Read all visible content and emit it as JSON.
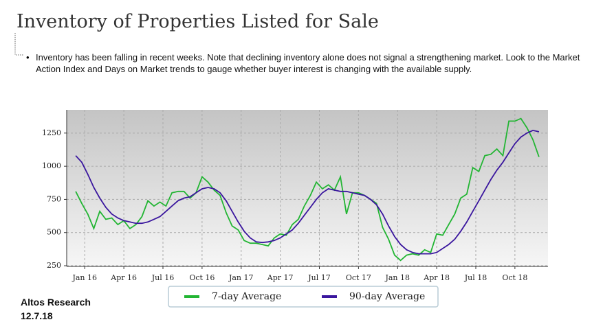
{
  "header": {
    "title": "Inventory of Properties Listed for Sale",
    "bullet": "Inventory has been falling in recent weeks. Note that declining inventory alone does not signal a strengthening market. Look to the Market Action Index and Days on Market trends to gauge whether buyer interest is changing with the available supply."
  },
  "footer": [
    "Altos Research",
    "12.7.18"
  ],
  "chart_data": {
    "type": "line",
    "x": [
      0,
      2,
      4,
      6,
      8,
      10,
      12,
      14,
      16,
      18,
      20,
      22,
      24,
      26,
      28,
      30,
      32,
      34,
      36,
      38,
      40,
      42,
      44,
      46,
      48,
      50,
      52,
      54,
      56,
      58,
      60,
      62,
      64,
      66,
      68,
      70,
      72,
      74,
      76,
      78,
      80,
      82,
      84,
      86,
      88,
      90,
      92,
      94,
      96,
      98,
      100,
      102,
      104,
      106,
      108,
      110,
      112,
      114,
      116,
      118,
      120,
      122,
      124,
      126,
      128,
      130,
      132,
      134,
      136,
      138,
      140,
      142,
      144,
      146,
      148,
      150,
      152,
      154
    ],
    "series": [
      {
        "name": "7-day Average",
        "color": "#22b533",
        "values": [
          810,
          720,
          640,
          530,
          660,
          600,
          610,
          560,
          590,
          530,
          560,
          620,
          740,
          700,
          730,
          700,
          800,
          810,
          810,
          760,
          800,
          920,
          880,
          820,
          780,
          650,
          550,
          520,
          440,
          420,
          420,
          410,
          400,
          460,
          490,
          480,
          560,
          600,
          700,
          780,
          880,
          830,
          860,
          820,
          920,
          640,
          800,
          800,
          780,
          750,
          720,
          540,
          450,
          330,
          290,
          330,
          340,
          330,
          370,
          350,
          490,
          480,
          560,
          640,
          760,
          790,
          990,
          960,
          1080,
          1090,
          1130,
          1080,
          1340,
          1340,
          1360,
          1290,
          1200,
          1070
        ]
      },
      {
        "name": "90-day Average",
        "color": "#3a169e",
        "values": [
          1080,
          1030,
          940,
          840,
          760,
          690,
          640,
          610,
          590,
          580,
          570,
          570,
          580,
          600,
          620,
          660,
          700,
          740,
          760,
          770,
          800,
          830,
          840,
          830,
          800,
          740,
          660,
          580,
          510,
          460,
          430,
          425,
          430,
          440,
          460,
          490,
          520,
          570,
          630,
          690,
          750,
          800,
          830,
          820,
          810,
          810,
          800,
          790,
          780,
          750,
          710,
          640,
          550,
          470,
          410,
          370,
          350,
          340,
          340,
          340,
          350,
          380,
          410,
          450,
          510,
          580,
          660,
          740,
          820,
          900,
          970,
          1030,
          1100,
          1170,
          1220,
          1250,
          1270,
          1260
        ]
      }
    ],
    "xlim": [
      -3,
      157
    ],
    "xticks": [
      {
        "value": 3,
        "label": "Jan 16"
      },
      {
        "value": 16,
        "label": "Apr 16"
      },
      {
        "value": 29,
        "label": "Jul 16"
      },
      {
        "value": 42,
        "label": "Oct 16"
      },
      {
        "value": 55,
        "label": "Jan 17"
      },
      {
        "value": 68,
        "label": "Apr 17"
      },
      {
        "value": 81,
        "label": "Jul 17"
      },
      {
        "value": 94,
        "label": "Oct 17"
      },
      {
        "value": 107,
        "label": "Jan 18"
      },
      {
        "value": 120,
        "label": "Apr 18"
      },
      {
        "value": 133,
        "label": "Jul 18"
      },
      {
        "value": 146,
        "label": "Oct 18"
      }
    ],
    "ylim": [
      245,
      1425
    ],
    "yticks": [
      250,
      500,
      750,
      1000,
      1250
    ],
    "grid": true,
    "legend": "bottom"
  }
}
